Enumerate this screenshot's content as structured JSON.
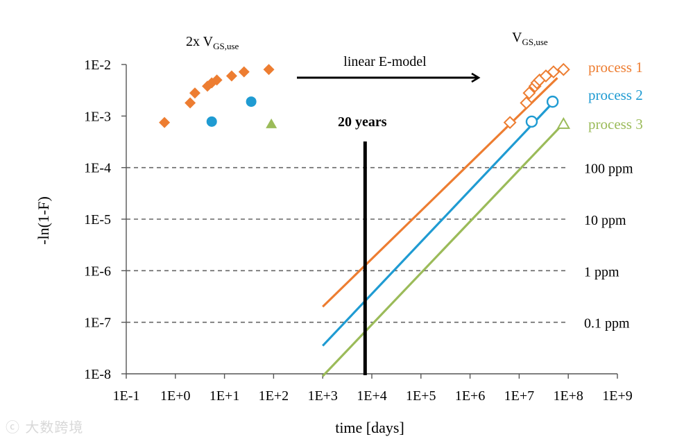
{
  "chart_data": {
    "type": "scatter",
    "xlabel": "time [days]",
    "ylabel": "-ln(1-F)",
    "xscale": "log10",
    "yscale": "log10",
    "xlim_exp": [
      -1,
      9
    ],
    "ylim_exp": [
      -8,
      -2
    ],
    "x_ticks": [
      "1E-1",
      "1E+0",
      "1E+1",
      "1E+2",
      "1E+3",
      "1E+4",
      "1E+5",
      "1E+6",
      "1E+7",
      "1E+8",
      "1E+9"
    ],
    "y_ticks": [
      "1E-2",
      "1E-3",
      "1E-4",
      "1E-5",
      "1E-6",
      "1E-7",
      "1E-8"
    ],
    "left_group_label_prefix": "2x V",
    "left_group_label_sub": "GS,use",
    "right_group_label_prefix": "V",
    "right_group_label_sub": "GS,use",
    "arrow_label": "linear E-model",
    "marker_label": "20 years",
    "marker_day": 7300,
    "ppm_levels": [
      {
        "label": "100 ppm",
        "value": 0.0001
      },
      {
        "label": "10 ppm",
        "value": 1e-05
      },
      {
        "label": "1 ppm",
        "value": 1e-06
      },
      {
        "label": "0.1 ppm",
        "value": 1e-07
      }
    ],
    "series": [
      {
        "name": "process 1",
        "color": "#ed7d31",
        "marker": "diamond",
        "stress": [
          [
            0.6,
            0.00075
          ],
          [
            2.0,
            0.0018
          ],
          [
            2.5,
            0.0028
          ],
          [
            4.5,
            0.0038
          ],
          [
            5.5,
            0.0044
          ],
          [
            7.0,
            0.005
          ],
          [
            14,
            0.006
          ],
          [
            25,
            0.0072
          ],
          [
            80,
            0.008
          ]
        ],
        "use": [
          [
            6500000.0,
            0.00075
          ],
          [
            14000000.0,
            0.0018
          ],
          [
            16000000.0,
            0.0028
          ],
          [
            21000000.0,
            0.0038
          ],
          [
            23000000.0,
            0.0044
          ],
          [
            26000000.0,
            0.005
          ],
          [
            35000000.0,
            0.006
          ],
          [
            50000000.0,
            0.0072
          ],
          [
            80000000.0,
            0.008
          ]
        ],
        "fit": [
          [
            1000.0,
            2e-07
          ],
          [
            60000000.0,
            0.0055
          ]
        ]
      },
      {
        "name": "process 2",
        "color": "#1f9bd2",
        "marker": "circle",
        "stress": [
          [
            5.5,
            0.00078
          ],
          [
            35,
            0.0019
          ]
        ],
        "use": [
          [
            18000000.0,
            0.00078
          ],
          [
            48000000.0,
            0.0019
          ]
        ],
        "fit": [
          [
            1000.0,
            3.5e-08
          ],
          [
            48000000.0,
            0.0018
          ]
        ]
      },
      {
        "name": "process 3",
        "color": "#9bbb59",
        "marker": "triangle",
        "stress": [
          [
            90,
            0.0007
          ]
        ],
        "use": [
          [
            80000000.0,
            0.0007
          ]
        ],
        "fit": [
          [
            1000.0,
            9e-09
          ],
          [
            80000000.0,
            0.00072
          ]
        ]
      }
    ]
  }
}
